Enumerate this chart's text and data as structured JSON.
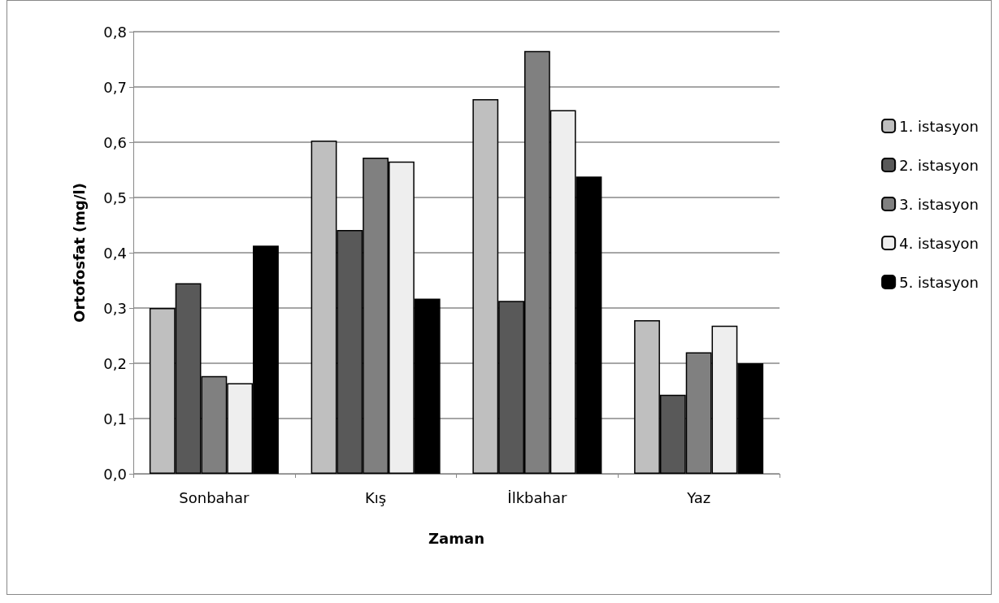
{
  "chart_data": {
    "type": "bar",
    "xlabel": "Zaman",
    "ylabel": "Ortofosfat (mg/l)",
    "categories": [
      "Sonbahar",
      "Kış",
      "İlkbahar",
      "Yaz"
    ],
    "series": [
      {
        "name": "1. istasyon",
        "color": "#bfbfbf",
        "values": [
          0.3,
          0.603,
          0.678,
          0.278
        ]
      },
      {
        "name": "2. istasyon",
        "color": "#595959",
        "values": [
          0.345,
          0.441,
          0.313,
          0.143
        ]
      },
      {
        "name": "3. istasyon",
        "color": "#808080",
        "values": [
          0.177,
          0.572,
          0.765,
          0.22
        ]
      },
      {
        "name": "4. istasyon",
        "color": "#eeeeee",
        "values": [
          0.164,
          0.565,
          0.658,
          0.268
        ]
      },
      {
        "name": "5. istasyon",
        "color": "#000000",
        "values": [
          0.413,
          0.317,
          0.538,
          0.2
        ]
      }
    ],
    "ylim": [
      0,
      0.8
    ],
    "yticks": [
      {
        "value": 0,
        "label": "0,0"
      },
      {
        "value": 0.1,
        "label": "0,1"
      },
      {
        "value": 0.2,
        "label": "0,2"
      },
      {
        "value": 0.3,
        "label": "0,3"
      },
      {
        "value": 0.4,
        "label": "0,4"
      },
      {
        "value": 0.5,
        "label": "0,5"
      },
      {
        "value": 0.6,
        "label": "0,6"
      },
      {
        "value": 0.7,
        "label": "0,7"
      },
      {
        "value": 0.8,
        "label": "0,8"
      }
    ],
    "grid": "y",
    "legend": "right"
  }
}
